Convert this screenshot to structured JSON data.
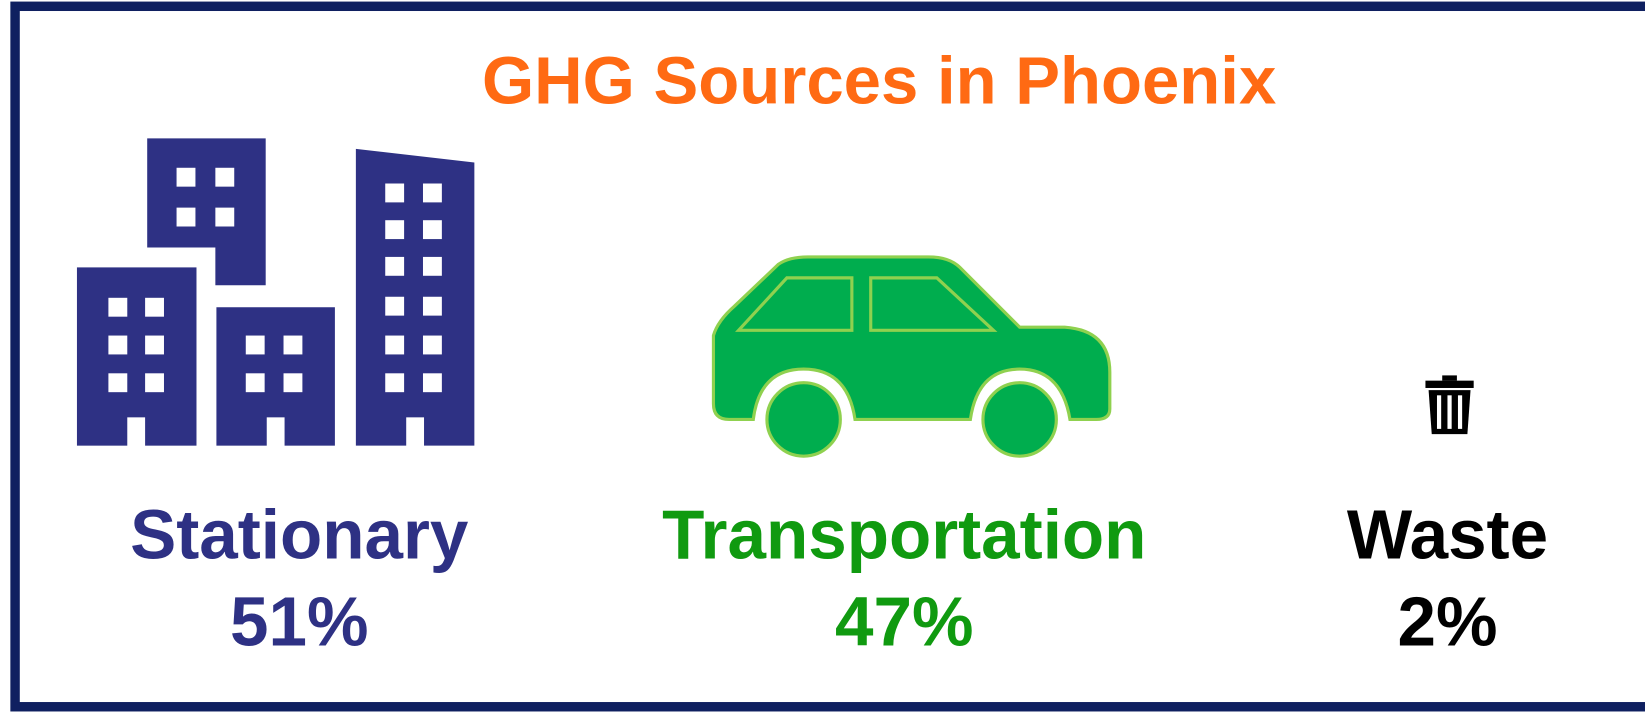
{
  "title": "GHG Sources in Phoenix",
  "items": [
    {
      "label": "Stationary",
      "share": "51%"
    },
    {
      "label": "Transportation",
      "share": "47%"
    },
    {
      "label": "Waste",
      "share": "2%"
    }
  ]
}
